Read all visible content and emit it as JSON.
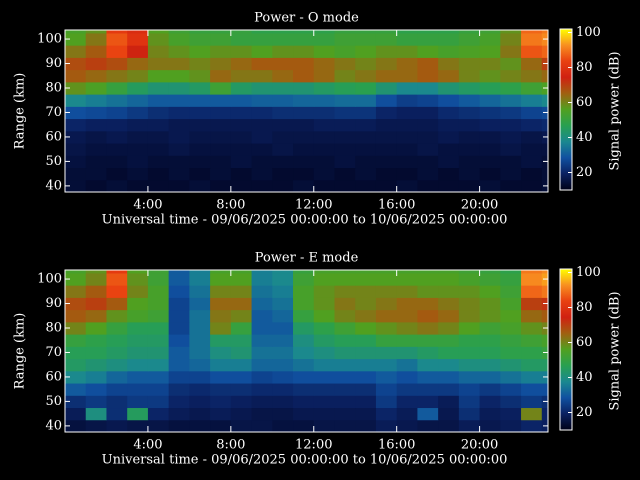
{
  "chart_data": [
    {
      "type": "heatmap",
      "title": "Power - O mode",
      "xlabel": "Universal time - 09/06/2025 00:00:00 to 10/06/2025 00:00:00",
      "ylabel": "Range (km)",
      "colorbar_label": "Signal power (dB)",
      "x": [
        0,
        1,
        2,
        3,
        4,
        5,
        6,
        7,
        8,
        9,
        10,
        11,
        12,
        13,
        14,
        15,
        16,
        17,
        18,
        19,
        20,
        21,
        22,
        23
      ],
      "y": [
        40,
        45,
        50,
        55,
        60,
        65,
        70,
        75,
        80,
        85,
        90,
        95,
        100,
        105
      ],
      "z": [
        [
          14,
          13,
          14,
          13,
          13,
          13,
          14,
          13,
          13,
          13,
          13,
          14,
          13,
          13,
          13,
          13,
          14,
          13,
          13,
          13,
          14,
          13,
          13,
          14
        ],
        [
          14,
          14,
          13,
          14,
          13,
          14,
          13,
          14,
          13,
          14,
          13,
          13,
          14,
          13,
          14,
          13,
          13,
          14,
          13,
          14,
          13,
          14,
          13,
          14
        ],
        [
          15,
          14,
          14,
          15,
          14,
          14,
          14,
          14,
          15,
          14,
          14,
          14,
          14,
          15,
          14,
          14,
          14,
          14,
          15,
          14,
          14,
          14,
          15,
          14
        ],
        [
          16,
          15,
          15,
          15,
          15,
          16,
          15,
          15,
          15,
          15,
          16,
          15,
          15,
          15,
          15,
          15,
          15,
          16,
          15,
          15,
          15,
          16,
          15,
          15
        ],
        [
          17,
          16,
          17,
          16,
          16,
          17,
          16,
          16,
          16,
          17,
          16,
          16,
          16,
          16,
          16,
          16,
          16,
          16,
          17,
          16,
          16,
          17,
          16,
          17
        ],
        [
          20,
          19,
          19,
          18,
          18,
          17,
          17,
          17,
          17,
          17,
          17,
          17,
          18,
          18,
          18,
          17,
          17,
          17,
          18,
          18,
          19,
          19,
          20,
          21
        ],
        [
          28,
          27,
          26,
          24,
          22,
          21,
          21,
          21,
          21,
          21,
          22,
          22,
          22,
          23,
          23,
          20,
          19,
          19,
          21,
          22,
          23,
          24,
          26,
          27
        ],
        [
          38,
          36,
          34,
          32,
          30,
          30,
          30,
          30,
          30,
          31,
          31,
          32,
          32,
          33,
          33,
          28,
          25,
          26,
          28,
          30,
          32,
          34,
          36,
          38
        ],
        [
          58,
          55,
          50,
          45,
          42,
          42,
          44,
          52,
          44,
          42,
          42,
          42,
          44,
          46,
          47,
          42,
          38,
          38,
          42,
          44,
          46,
          48,
          52,
          55
        ],
        [
          66,
          64,
          62,
          60,
          56,
          56,
          58,
          64,
          62,
          62,
          64,
          66,
          64,
          60,
          62,
          64,
          64,
          66,
          64,
          60,
          58,
          60,
          62,
          64
        ],
        [
          68,
          70,
          68,
          64,
          62,
          62,
          60,
          62,
          64,
          66,
          66,
          66,
          64,
          62,
          60,
          62,
          64,
          66,
          62,
          60,
          60,
          58,
          64,
          70
        ],
        [
          62,
          66,
          84,
          74,
          60,
          58,
          56,
          58,
          58,
          56,
          58,
          58,
          56,
          54,
          56,
          58,
          58,
          56,
          54,
          55,
          56,
          62,
          86,
          88
        ],
        [
          56,
          62,
          86,
          80,
          58,
          54,
          52,
          52,
          50,
          50,
          50,
          50,
          50,
          52,
          52,
          52,
          50,
          50,
          50,
          52,
          54,
          60,
          90,
          92
        ],
        [
          54,
          58,
          82,
          78,
          56,
          52,
          50,
          50,
          50,
          48,
          48,
          48,
          48,
          50,
          50,
          50,
          48,
          48,
          48,
          50,
          52,
          58,
          88,
          90
        ]
      ],
      "xlim": [
        0,
        23.3
      ],
      "ylim": [
        37.5,
        103.7
      ],
      "xticks": [
        {
          "value": 4,
          "label": "4:00"
        },
        {
          "value": 8,
          "label": "8:00"
        },
        {
          "value": 12,
          "label": "12:00"
        },
        {
          "value": 16,
          "label": "16:00"
        },
        {
          "value": 20,
          "label": "20:00"
        }
      ],
      "yticks": [
        40,
        50,
        60,
        70,
        80,
        90,
        100
      ],
      "clim": [
        10,
        102
      ],
      "cticks": [
        20,
        40,
        60,
        80,
        100
      ],
      "colormap": [
        "#000018",
        "#0a2060",
        "#1050a0",
        "#1a8890",
        "#28a050",
        "#50a020",
        "#a06010",
        "#d02010",
        "#e84010",
        "#f89020",
        "#ffff00"
      ]
    },
    {
      "type": "heatmap",
      "title": "Power - E mode",
      "xlabel": "Universal time - 09/06/2025 00:00:00 to 10/06/2025 00:00:00",
      "ylabel": "Range (km)",
      "colorbar_label": "Signal power (dB)",
      "x": [
        0,
        1,
        2,
        3,
        4,
        5,
        6,
        7,
        8,
        9,
        10,
        11,
        12,
        13,
        14,
        15,
        16,
        17,
        18,
        19,
        20,
        21,
        22,
        23
      ],
      "y": [
        40,
        45,
        50,
        55,
        60,
        65,
        70,
        75,
        80,
        85,
        90,
        95,
        100,
        105
      ],
      "z": [
        [
          15,
          16,
          17,
          16,
          16,
          15,
          15,
          15,
          16,
          16,
          15,
          15,
          16,
          16,
          16,
          18,
          17,
          16,
          16,
          18,
          17,
          18,
          20,
          19
        ],
        [
          18,
          40,
          22,
          45,
          20,
          18,
          17,
          18,
          17,
          16,
          16,
          17,
          17,
          17,
          17,
          20,
          18,
          30,
          17,
          22,
          18,
          19,
          60,
          20
        ],
        [
          22,
          24,
          22,
          24,
          24,
          20,
          19,
          20,
          19,
          18,
          18,
          19,
          19,
          19,
          19,
          24,
          20,
          20,
          18,
          24,
          20,
          22,
          24,
          22
        ],
        [
          30,
          28,
          26,
          26,
          26,
          22,
          21,
          22,
          22,
          21,
          21,
          22,
          22,
          22,
          22,
          26,
          24,
          24,
          24,
          26,
          24,
          26,
          28,
          28
        ],
        [
          38,
          36,
          32,
          30,
          30,
          26,
          26,
          28,
          28,
          26,
          27,
          28,
          28,
          28,
          28,
          30,
          28,
          30,
          30,
          32,
          32,
          34,
          36,
          36
        ],
        [
          44,
          42,
          40,
          38,
          38,
          30,
          32,
          36,
          36,
          32,
          32,
          34,
          36,
          36,
          36,
          36,
          34,
          38,
          38,
          40,
          40,
          42,
          44,
          44
        ],
        [
          46,
          46,
          44,
          42,
          42,
          30,
          34,
          40,
          42,
          34,
          34,
          38,
          40,
          42,
          42,
          42,
          42,
          44,
          46,
          46,
          46,
          48,
          48,
          50
        ],
        [
          50,
          48,
          46,
          44,
          44,
          28,
          34,
          44,
          44,
          32,
          32,
          40,
          44,
          46,
          46,
          50,
          50,
          50,
          50,
          48,
          48,
          50,
          52,
          54
        ],
        [
          60,
          56,
          50,
          46,
          46,
          26,
          34,
          60,
          50,
          30,
          30,
          44,
          48,
          52,
          56,
          58,
          60,
          62,
          60,
          56,
          52,
          54,
          58,
          60
        ],
        [
          66,
          64,
          58,
          54,
          52,
          26,
          34,
          62,
          60,
          30,
          32,
          50,
          56,
          60,
          62,
          64,
          64,
          66,
          64,
          60,
          58,
          56,
          64,
          66
        ],
        [
          68,
          70,
          66,
          56,
          54,
          26,
          32,
          64,
          64,
          32,
          34,
          54,
          58,
          62,
          60,
          62,
          64,
          64,
          62,
          60,
          58,
          54,
          70,
          72
        ],
        [
          62,
          66,
          84,
          60,
          54,
          28,
          34,
          60,
          60,
          34,
          36,
          54,
          58,
          60,
          60,
          60,
          60,
          58,
          58,
          58,
          56,
          52,
          88,
          90
        ],
        [
          56,
          60,
          86,
          58,
          52,
          30,
          36,
          56,
          56,
          36,
          38,
          52,
          56,
          56,
          56,
          56,
          56,
          56,
          56,
          54,
          52,
          50,
          92,
          94
        ],
        [
          54,
          58,
          82,
          56,
          52,
          30,
          36,
          54,
          54,
          36,
          38,
          50,
          54,
          54,
          54,
          54,
          54,
          54,
          54,
          52,
          50,
          48,
          90,
          92
        ]
      ],
      "xlim": [
        0,
        23.3
      ],
      "ylim": [
        37.5,
        103.7
      ],
      "xticks": [
        {
          "value": 4,
          "label": "4:00"
        },
        {
          "value": 8,
          "label": "8:00"
        },
        {
          "value": 12,
          "label": "12:00"
        },
        {
          "value": 16,
          "label": "16:00"
        },
        {
          "value": 20,
          "label": "20:00"
        }
      ],
      "yticks": [
        40,
        50,
        60,
        70,
        80,
        90,
        100
      ],
      "clim": [
        10,
        102
      ],
      "cticks": [
        20,
        40,
        60,
        80,
        100
      ],
      "colormap": [
        "#000018",
        "#0a2060",
        "#1050a0",
        "#1a8890",
        "#28a050",
        "#50a020",
        "#a06010",
        "#d02010",
        "#e84010",
        "#f89020",
        "#ffff00"
      ]
    }
  ]
}
